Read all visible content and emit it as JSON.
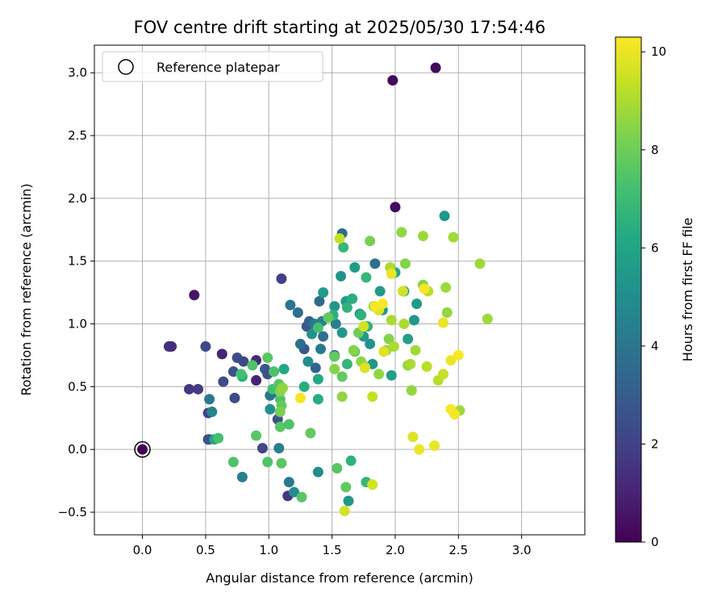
{
  "chart_data": {
    "type": "scatter",
    "title": "FOV centre drift starting at 2025/05/30 17:54:46",
    "xlabel": "Angular distance from reference (arcmin)",
    "ylabel": "Rotation from reference (arcmin)",
    "xlim": [
      -0.38,
      3.5
    ],
    "ylim": [
      -0.68,
      3.22
    ],
    "xticks": [
      "0.0",
      "0.5",
      "1.0",
      "1.5",
      "2.0",
      "2.5",
      "3.0"
    ],
    "yticks": [
      "−0.5",
      "0.0",
      "0.5",
      "1.0",
      "1.5",
      "2.0",
      "2.5",
      "3.0"
    ],
    "grid": true,
    "legend": {
      "placement": "top-left",
      "label": "Reference platepar"
    },
    "reference_point": {
      "x": 0.0,
      "y": 0.0
    },
    "colorbar": {
      "label": "Hours from first FF file",
      "colormap": "viridis",
      "range": [
        0,
        10.3
      ],
      "ticks": [
        "0",
        "2",
        "4",
        "6",
        "8",
        "10"
      ]
    },
    "points": [
      {
        "x": 0.0,
        "y": 0.0,
        "h": 0.0
      },
      {
        "x": 1.98,
        "y": 2.94,
        "h": 0.2
      },
      {
        "x": 2.32,
        "y": 3.04,
        "h": 0.2
      },
      {
        "x": 2.0,
        "y": 1.93,
        "h": 0.3
      },
      {
        "x": 0.41,
        "y": 1.23,
        "h": 0.6
      },
      {
        "x": 0.21,
        "y": 0.82,
        "h": 1.4
      },
      {
        "x": 0.23,
        "y": 0.82,
        "h": 1.4
      },
      {
        "x": 0.37,
        "y": 0.48,
        "h": 1.6
      },
      {
        "x": 0.44,
        "y": 0.48,
        "h": 1.8
      },
      {
        "x": 0.63,
        "y": 0.76,
        "h": 1.0
      },
      {
        "x": 0.9,
        "y": 0.71,
        "h": 1.2
      },
      {
        "x": 0.9,
        "y": 0.55,
        "h": 1.0
      },
      {
        "x": 1.1,
        "y": 1.36,
        "h": 2.0
      },
      {
        "x": 1.15,
        "y": -0.37,
        "h": 1.6
      },
      {
        "x": 0.5,
        "y": 0.82,
        "h": 2.2
      },
      {
        "x": 0.64,
        "y": 0.54,
        "h": 2.4
      },
      {
        "x": 0.73,
        "y": 0.41,
        "h": 2.4
      },
      {
        "x": 0.72,
        "y": 0.62,
        "h": 2.6
      },
      {
        "x": 0.75,
        "y": 0.73,
        "h": 2.4
      },
      {
        "x": 0.8,
        "y": 0.7,
        "h": 2.2
      },
      {
        "x": 0.52,
        "y": 0.29,
        "h": 2.0
      },
      {
        "x": 0.52,
        "y": 0.08,
        "h": 2.4
      },
      {
        "x": 0.53,
        "y": 0.08,
        "h": 2.6
      },
      {
        "x": 0.95,
        "y": 0.01,
        "h": 2.2
      },
      {
        "x": 0.97,
        "y": 0.64,
        "h": 2.8
      },
      {
        "x": 0.99,
        "y": 0.6,
        "h": 2.6
      },
      {
        "x": 1.07,
        "y": 0.24,
        "h": 2.6
      },
      {
        "x": 1.28,
        "y": 0.8,
        "h": 2.8
      },
      {
        "x": 1.3,
        "y": 0.98,
        "h": 2.8
      },
      {
        "x": 1.32,
        "y": 1.02,
        "h": 3.2
      },
      {
        "x": 1.37,
        "y": 0.65,
        "h": 3.2
      },
      {
        "x": 1.4,
        "y": 1.18,
        "h": 3.6
      },
      {
        "x": 1.52,
        "y": 0.75,
        "h": 3.4
      },
      {
        "x": 0.53,
        "y": 0.4,
        "h": 4.2
      },
      {
        "x": 0.55,
        "y": 0.3,
        "h": 4.6
      },
      {
        "x": 0.79,
        "y": -0.22,
        "h": 4.4
      },
      {
        "x": 1.01,
        "y": 0.43,
        "h": 4.0
      },
      {
        "x": 1.05,
        "y": 0.46,
        "h": 4.0
      },
      {
        "x": 1.08,
        "y": 0.01,
        "h": 4.4
      },
      {
        "x": 1.16,
        "y": -0.26,
        "h": 4.2
      },
      {
        "x": 1.17,
        "y": 1.15,
        "h": 4.0
      },
      {
        "x": 1.23,
        "y": 1.09,
        "h": 3.8
      },
      {
        "x": 1.25,
        "y": 0.84,
        "h": 3.8
      },
      {
        "x": 1.36,
        "y": 1.0,
        "h": 4.2
      },
      {
        "x": 1.42,
        "y": 1.02,
        "h": 4.4
      },
      {
        "x": 1.41,
        "y": 0.8,
        "h": 4.2
      },
      {
        "x": 1.43,
        "y": 0.9,
        "h": 3.8
      },
      {
        "x": 1.53,
        "y": 1.0,
        "h": 4.4
      },
      {
        "x": 1.58,
        "y": 1.72,
        "h": 3.6
      },
      {
        "x": 1.84,
        "y": 1.48,
        "h": 3.8
      },
      {
        "x": 1.01,
        "y": 0.32,
        "h": 5.2
      },
      {
        "x": 1.2,
        "y": -0.34,
        "h": 5.0
      },
      {
        "x": 1.39,
        "y": -0.18,
        "h": 5.0
      },
      {
        "x": 1.63,
        "y": -0.41,
        "h": 5.4
      },
      {
        "x": 1.31,
        "y": 0.7,
        "h": 5.0
      },
      {
        "x": 1.34,
        "y": 0.92,
        "h": 5.2
      },
      {
        "x": 1.43,
        "y": 1.25,
        "h": 5.6
      },
      {
        "x": 1.52,
        "y": 1.14,
        "h": 5.4
      },
      {
        "x": 1.57,
        "y": 1.38,
        "h": 5.2
      },
      {
        "x": 1.58,
        "y": 0.93,
        "h": 5.4
      },
      {
        "x": 1.61,
        "y": 1.18,
        "h": 5.6
      },
      {
        "x": 1.68,
        "y": 1.45,
        "h": 5.6
      },
      {
        "x": 1.72,
        "y": 1.08,
        "h": 5.4
      },
      {
        "x": 1.75,
        "y": 0.9,
        "h": 5.6
      },
      {
        "x": 1.8,
        "y": 0.84,
        "h": 5.2
      },
      {
        "x": 1.82,
        "y": 0.68,
        "h": 5.4
      },
      {
        "x": 1.88,
        "y": 1.26,
        "h": 5.6
      },
      {
        "x": 1.9,
        "y": 1.11,
        "h": 5.4
      },
      {
        "x": 1.97,
        "y": 0.59,
        "h": 5.8
      },
      {
        "x": 2.0,
        "y": 1.41,
        "h": 6.0
      },
      {
        "x": 2.07,
        "y": 1.26,
        "h": 5.6
      },
      {
        "x": 2.1,
        "y": 0.88,
        "h": 5.8
      },
      {
        "x": 2.15,
        "y": 1.03,
        "h": 5.4
      },
      {
        "x": 2.17,
        "y": 1.16,
        "h": 5.6
      },
      {
        "x": 2.39,
        "y": 1.86,
        "h": 5.4
      },
      {
        "x": 0.57,
        "y": 0.08,
        "h": 6.2
      },
      {
        "x": 0.79,
        "y": 0.58,
        "h": 6.4
      },
      {
        "x": 1.12,
        "y": 0.64,
        "h": 6.2
      },
      {
        "x": 1.28,
        "y": 0.5,
        "h": 6.4
      },
      {
        "x": 1.39,
        "y": 0.56,
        "h": 6.2
      },
      {
        "x": 1.39,
        "y": 0.4,
        "h": 6.4
      },
      {
        "x": 1.51,
        "y": 1.07,
        "h": 6.6
      },
      {
        "x": 1.59,
        "y": 1.61,
        "h": 6.8
      },
      {
        "x": 1.62,
        "y": 1.13,
        "h": 6.6
      },
      {
        "x": 1.66,
        "y": 1.2,
        "h": 6.4
      },
      {
        "x": 1.65,
        "y": -0.09,
        "h": 6.6
      },
      {
        "x": 1.77,
        "y": -0.26,
        "h": 6.8
      },
      {
        "x": 1.73,
        "y": 1.07,
        "h": 6.6
      },
      {
        "x": 1.77,
        "y": 1.37,
        "h": 6.8
      },
      {
        "x": 1.78,
        "y": 0.98,
        "h": 6.6
      },
      {
        "x": 1.62,
        "y": 0.68,
        "h": 6.8
      },
      {
        "x": 0.6,
        "y": 0.09,
        "h": 7.2
      },
      {
        "x": 0.72,
        "y": -0.1,
        "h": 7.4
      },
      {
        "x": 0.78,
        "y": 0.6,
        "h": 7.2
      },
      {
        "x": 0.87,
        "y": 0.67,
        "h": 7.4
      },
      {
        "x": 0.9,
        "y": 0.11,
        "h": 7.6
      },
      {
        "x": 0.99,
        "y": -0.1,
        "h": 7.4
      },
      {
        "x": 0.99,
        "y": 0.73,
        "h": 7.6
      },
      {
        "x": 1.03,
        "y": 0.48,
        "h": 7.2
      },
      {
        "x": 1.04,
        "y": 0.62,
        "h": 7.4
      },
      {
        "x": 1.08,
        "y": 0.52,
        "h": 7.6
      },
      {
        "x": 1.09,
        "y": 0.4,
        "h": 7.4
      },
      {
        "x": 1.09,
        "y": 0.18,
        "h": 7.6
      },
      {
        "x": 1.1,
        "y": 0.35,
        "h": 7.8
      },
      {
        "x": 1.1,
        "y": -0.11,
        "h": 7.6
      },
      {
        "x": 1.16,
        "y": 0.2,
        "h": 7.4
      },
      {
        "x": 1.26,
        "y": -0.38,
        "h": 7.6
      },
      {
        "x": 1.33,
        "y": 0.13,
        "h": 7.8
      },
      {
        "x": 1.39,
        "y": 0.97,
        "h": 7.2
      },
      {
        "x": 1.47,
        "y": 1.05,
        "h": 7.8
      },
      {
        "x": 1.52,
        "y": 0.74,
        "h": 7.8
      },
      {
        "x": 1.54,
        "y": -0.15,
        "h": 7.6
      },
      {
        "x": 1.58,
        "y": 0.58,
        "h": 7.8
      },
      {
        "x": 1.61,
        "y": -0.3,
        "h": 7.8
      },
      {
        "x": 1.68,
        "y": 0.78,
        "h": 7.6
      },
      {
        "x": 1.71,
        "y": 0.93,
        "h": 8.0
      },
      {
        "x": 1.76,
        "y": 0.66,
        "h": 8.2
      },
      {
        "x": 1.8,
        "y": 1.66,
        "h": 8.2
      },
      {
        "x": 1.09,
        "y": 0.46,
        "h": 8.4
      },
      {
        "x": 1.11,
        "y": 0.49,
        "h": 8.6
      },
      {
        "x": 1.09,
        "y": 0.3,
        "h": 8.2
      },
      {
        "x": 1.52,
        "y": 0.64,
        "h": 8.4
      },
      {
        "x": 1.58,
        "y": 0.42,
        "h": 8.6
      },
      {
        "x": 1.67,
        "y": 0.79,
        "h": 8.4
      },
      {
        "x": 1.73,
        "y": 0.7,
        "h": 8.6
      },
      {
        "x": 1.83,
        "y": 1.14,
        "h": 8.4
      },
      {
        "x": 1.87,
        "y": 0.6,
        "h": 8.6
      },
      {
        "x": 1.93,
        "y": 0.79,
        "h": 8.6
      },
      {
        "x": 1.95,
        "y": 0.88,
        "h": 8.4
      },
      {
        "x": 2.05,
        "y": 1.73,
        "h": 8.6
      },
      {
        "x": 2.08,
        "y": 1.48,
        "h": 8.4
      },
      {
        "x": 2.1,
        "y": 0.67,
        "h": 8.6
      },
      {
        "x": 2.13,
        "y": 0.47,
        "h": 8.6
      },
      {
        "x": 2.16,
        "y": 0.79,
        "h": 8.8
      },
      {
        "x": 2.22,
        "y": 1.31,
        "h": 8.4
      },
      {
        "x": 2.22,
        "y": 1.7,
        "h": 8.8
      },
      {
        "x": 2.4,
        "y": 1.29,
        "h": 8.8
      },
      {
        "x": 2.41,
        "y": 1.09,
        "h": 8.6
      },
      {
        "x": 2.46,
        "y": 1.69,
        "h": 8.8
      },
      {
        "x": 2.51,
        "y": 0.31,
        "h": 8.8
      },
      {
        "x": 2.67,
        "y": 1.48,
        "h": 8.8
      },
      {
        "x": 2.73,
        "y": 1.04,
        "h": 8.8
      },
      {
        "x": 1.96,
        "y": 1.45,
        "h": 9.0
      },
      {
        "x": 1.97,
        "y": 1.03,
        "h": 9.0
      },
      {
        "x": 1.99,
        "y": 0.82,
        "h": 9.0
      },
      {
        "x": 2.07,
        "y": 1.0,
        "h": 9.0
      },
      {
        "x": 2.12,
        "y": 0.68,
        "h": 9.0
      },
      {
        "x": 2.25,
        "y": 0.66,
        "h": 9.2
      },
      {
        "x": 2.26,
        "y": 1.26,
        "h": 9.2
      },
      {
        "x": 2.34,
        "y": 0.55,
        "h": 9.2
      },
      {
        "x": 2.38,
        "y": 0.6,
        "h": 9.4
      },
      {
        "x": 1.56,
        "y": 1.68,
        "h": 9.4
      },
      {
        "x": 1.82,
        "y": 0.42,
        "h": 9.4
      },
      {
        "x": 1.82,
        "y": -0.28,
        "h": 9.6
      },
      {
        "x": 1.6,
        "y": -0.49,
        "h": 9.6
      },
      {
        "x": 1.75,
        "y": 0.98,
        "h": 9.6
      },
      {
        "x": 1.76,
        "y": 0.65,
        "h": 9.8
      },
      {
        "x": 1.87,
        "y": 1.11,
        "h": 9.8
      },
      {
        "x": 1.91,
        "y": 0.78,
        "h": 9.8
      },
      {
        "x": 2.06,
        "y": 1.26,
        "h": 9.6
      },
      {
        "x": 2.14,
        "y": 0.1,
        "h": 9.8
      },
      {
        "x": 2.19,
        "y": 0.0,
        "h": 10.0
      },
      {
        "x": 2.31,
        "y": 0.03,
        "h": 10.0
      },
      {
        "x": 2.38,
        "y": 1.01,
        "h": 10.0
      },
      {
        "x": 2.44,
        "y": 0.71,
        "h": 10.0
      },
      {
        "x": 2.44,
        "y": 0.32,
        "h": 10.2
      },
      {
        "x": 2.47,
        "y": 0.28,
        "h": 10.2
      },
      {
        "x": 2.5,
        "y": 0.75,
        "h": 10.2
      },
      {
        "x": 1.9,
        "y": 1.16,
        "h": 10.2
      },
      {
        "x": 1.84,
        "y": 1.14,
        "h": 10.2
      },
      {
        "x": 2.23,
        "y": 1.28,
        "h": 10.2
      },
      {
        "x": 1.25,
        "y": 0.41,
        "h": 10.2
      },
      {
        "x": 1.97,
        "y": 1.4,
        "h": 10.0
      }
    ]
  }
}
